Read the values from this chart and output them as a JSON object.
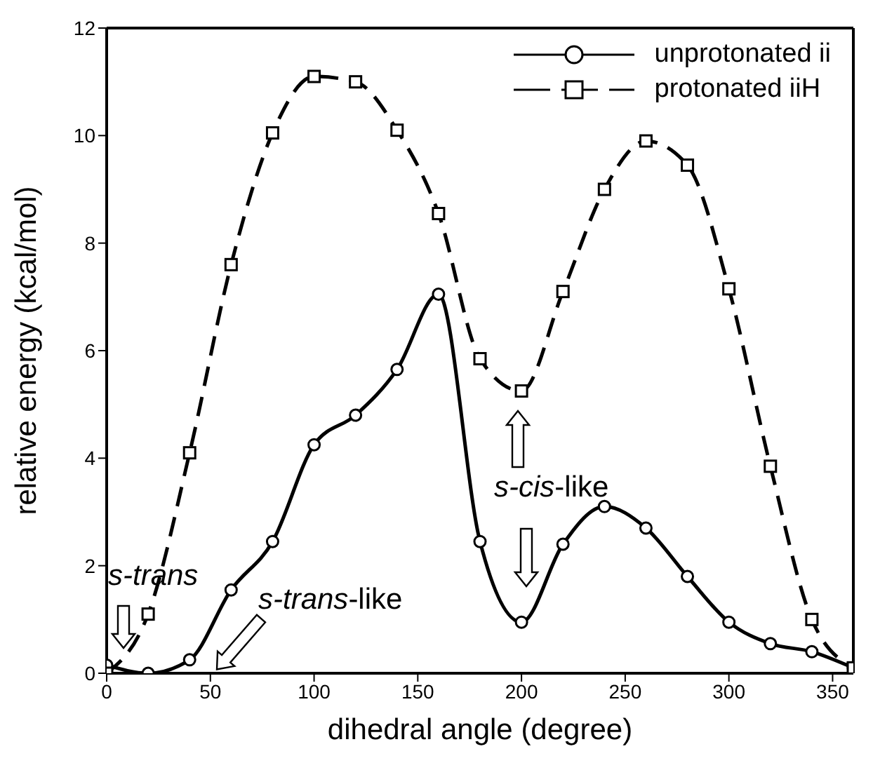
{
  "chart_data": {
    "type": "line",
    "xlabel": "dihedral angle (degree)",
    "ylabel": "relative energy (kcal/mol)",
    "x": [
      0,
      20,
      40,
      60,
      80,
      100,
      120,
      140,
      160,
      180,
      200,
      220,
      240,
      260,
      280,
      300,
      320,
      340,
      360
    ],
    "xlim": [
      0,
      360
    ],
    "xticks": [
      0,
      50,
      100,
      150,
      200,
      250,
      300,
      350
    ],
    "ylim": [
      0,
      12
    ],
    "yticks": [
      0,
      2,
      4,
      6,
      8,
      10,
      12
    ],
    "legend": "top right",
    "grid": false,
    "series": [
      {
        "name": "unprotonated ii",
        "color": "#000000",
        "marker": "circle",
        "line_style": "solid",
        "values": [
          0.15,
          0,
          0.25,
          1.55,
          2.45,
          4.25,
          4.8,
          5.65,
          7.05,
          2.45,
          0.95,
          2.4,
          3.1,
          2.7,
          1.8,
          0.95,
          0.55,
          0.4,
          0.1
        ]
      },
      {
        "name": "protonated iiH",
        "color": "#000000",
        "marker": "square",
        "line_style": "dashed",
        "values": [
          0,
          1.1,
          4.1,
          7.6,
          10.05,
          11.1,
          11.0,
          10.1,
          8.55,
          5.85,
          5.25,
          7.1,
          9.0,
          9.9,
          9.45,
          7.15,
          3.85,
          1.0,
          0.1
        ]
      }
    ],
    "annotations": [
      "s-trans",
      "s-trans-like",
      "s-cis-like"
    ]
  }
}
